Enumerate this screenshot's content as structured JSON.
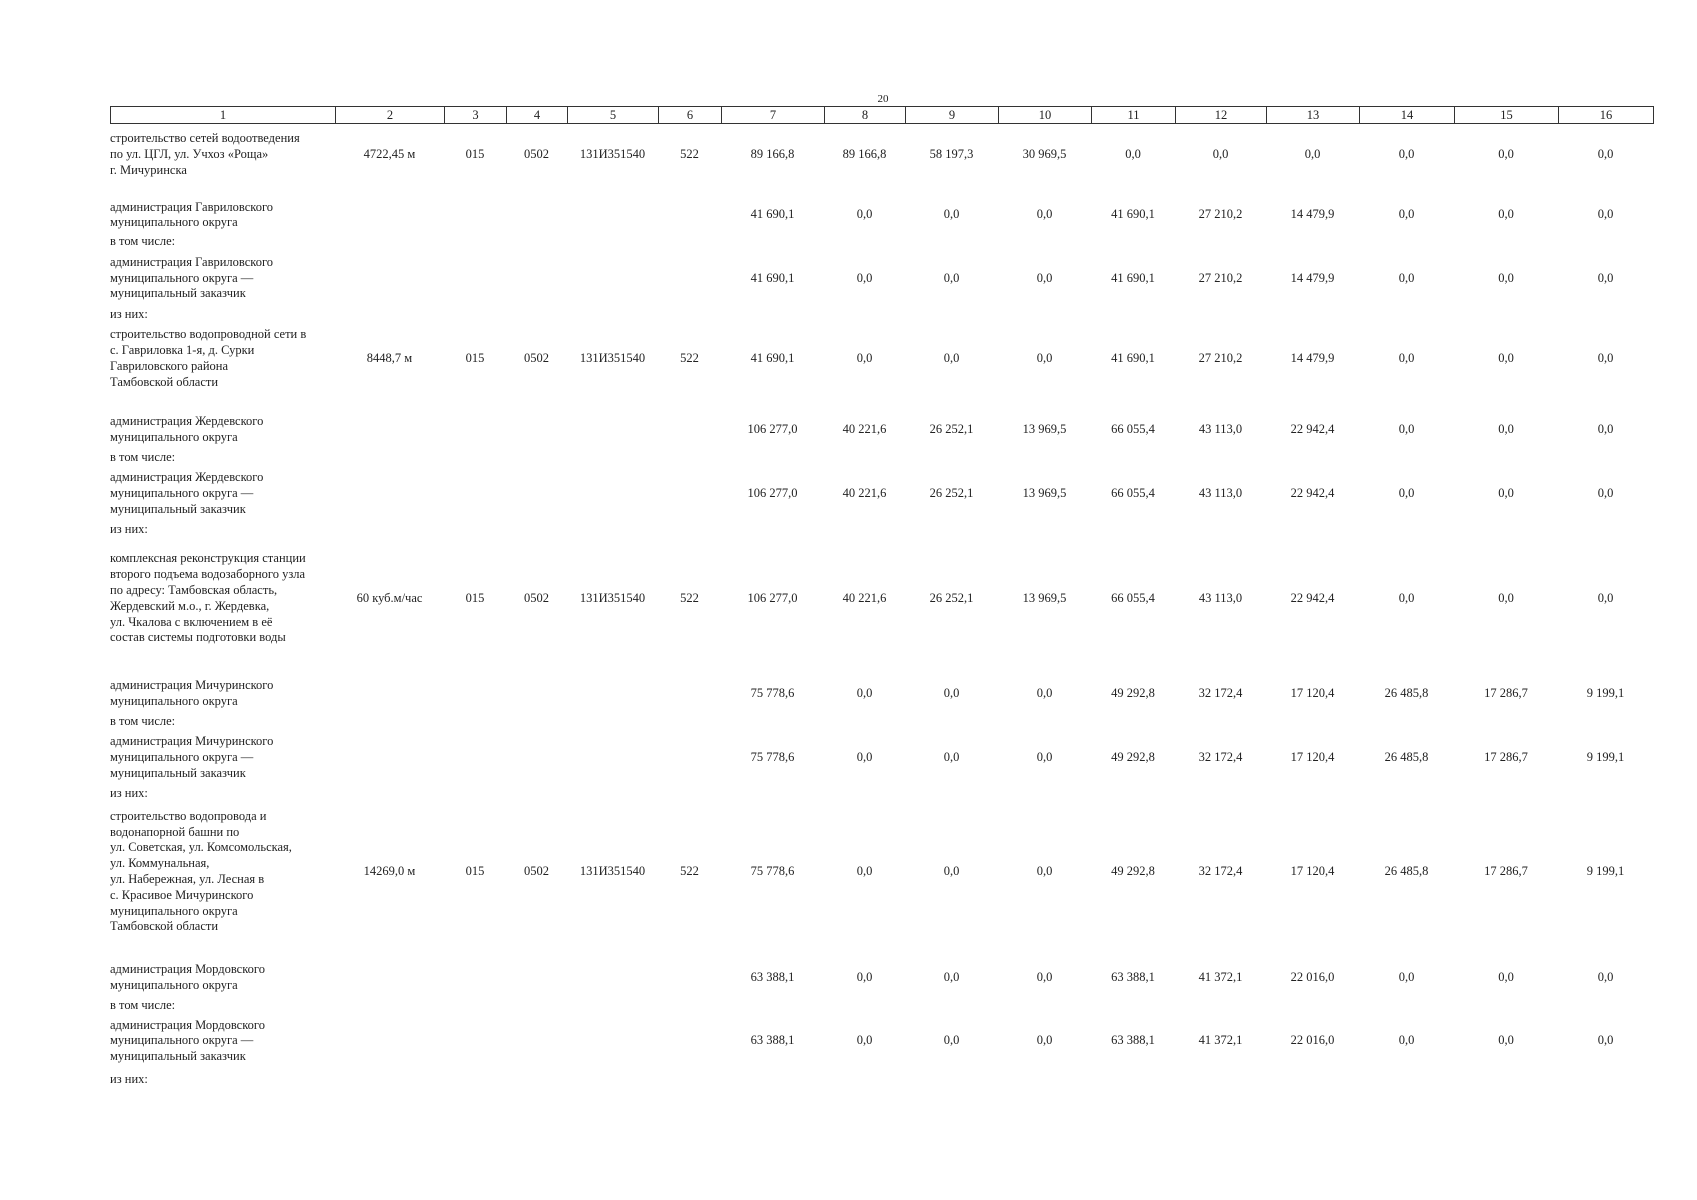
{
  "page_number": "20",
  "header": [
    "1",
    "2",
    "3",
    "4",
    "5",
    "6",
    "7",
    "8",
    "9",
    "10",
    "11",
    "12",
    "13",
    "14",
    "15",
    "16"
  ],
  "rows": [
    {
      "name": [
        "строительство сетей водоотведения",
        "по ул. ЦГЛ, ул. Учхоз «Роща»",
        "г. Мичуринска"
      ],
      "cells": [
        "4722,45 м",
        "015",
        "0502",
        "131И351540",
        "522",
        "89 166,8",
        "89 166,8",
        "58 197,3",
        "30 969,5",
        "0,0",
        "0,0",
        "0,0",
        "0,0",
        "0,0",
        "0,0"
      ]
    },
    {
      "name": [
        "администрация Гавриловского",
        "муниципального округа"
      ],
      "amounts": [
        "41 690,1",
        "0,0",
        "0,0",
        "0,0",
        "41 690,1",
        "27 210,2",
        "14 479,9",
        "0,0",
        "0,0",
        "0,0"
      ]
    },
    {
      "name": [
        "в том числе:"
      ]
    },
    {
      "name": [
        "администрация Гавриловского",
        "муниципального округа —",
        "муниципальный заказчик"
      ],
      "amounts": [
        "41 690,1",
        "0,0",
        "0,0",
        "0,0",
        "41 690,1",
        "27 210,2",
        "14 479,9",
        "0,0",
        "0,0",
        "0,0"
      ]
    },
    {
      "name": [
        "из них:"
      ]
    },
    {
      "name": [
        "строительство водопроводной сети в",
        "с. Гавриловка 1-я, д. Сурки",
        "Гавриловского района",
        "Тамбовской области"
      ],
      "cells": [
        "8448,7 м",
        "015",
        "0502",
        "131И351540",
        "522",
        "41 690,1",
        "0,0",
        "0,0",
        "0,0",
        "41 690,1",
        "27 210,2",
        "14 479,9",
        "0,0",
        "0,0",
        "0,0"
      ]
    },
    {
      "name": [
        "администрация Жердевского",
        "муниципального округа"
      ],
      "amounts": [
        "106 277,0",
        "40 221,6",
        "26 252,1",
        "13 969,5",
        "66 055,4",
        "43 113,0",
        "22 942,4",
        "0,0",
        "0,0",
        "0,0"
      ]
    },
    {
      "name": [
        "в том числе:"
      ]
    },
    {
      "name": [
        "администрация Жердевского",
        "муниципального округа —",
        "муниципальный заказчик"
      ],
      "amounts": [
        "106 277,0",
        "40 221,6",
        "26 252,1",
        "13 969,5",
        "66 055,4",
        "43 113,0",
        "22 942,4",
        "0,0",
        "0,0",
        "0,0"
      ]
    },
    {
      "name": [
        "из них:"
      ]
    },
    {
      "name": [
        "комплексная реконструкция станции",
        "второго подъема водозаборного узла",
        "по адресу: Тамбовская область,",
        "Жердевский м.о., г. Жердевка,",
        "ул. Чкалова с включением в её",
        "состав системы подготовки воды"
      ],
      "cells": [
        "60 куб.м/час",
        "015",
        "0502",
        "131И351540",
        "522",
        "106 277,0",
        "40 221,6",
        "26 252,1",
        "13 969,5",
        "66 055,4",
        "43 113,0",
        "22 942,4",
        "0,0",
        "0,0",
        "0,0"
      ]
    },
    {
      "name": [
        "администрация Мичуринского",
        "муниципального округа"
      ],
      "amounts": [
        "75 778,6",
        "0,0",
        "0,0",
        "0,0",
        "49 292,8",
        "32 172,4",
        "17 120,4",
        "26 485,8",
        "17 286,7",
        "9 199,1"
      ]
    },
    {
      "name": [
        "в том числе:"
      ]
    },
    {
      "name": [
        "администрация Мичуринского",
        "муниципального округа —",
        "муниципальный заказчик"
      ],
      "amounts": [
        "75 778,6",
        "0,0",
        "0,0",
        "0,0",
        "49 292,8",
        "32 172,4",
        "17 120,4",
        "26 485,8",
        "17 286,7",
        "9 199,1"
      ]
    },
    {
      "name": [
        "из них:"
      ]
    },
    {
      "name": [
        "строительство водопровода и",
        "водонапорной башни по",
        "ул. Советская, ул. Комсомольская,",
        "ул. Коммунальная,",
        "ул. Набережная, ул. Лесная в",
        "с. Красивое Мичуринского",
        "муниципального округа",
        "Тамбовской области"
      ],
      "cells": [
        "14269,0 м",
        "015",
        "0502",
        "131И351540",
        "522",
        "75 778,6",
        "0,0",
        "0,0",
        "0,0",
        "49 292,8",
        "32 172,4",
        "17 120,4",
        "26 485,8",
        "17 286,7",
        "9 199,1"
      ]
    },
    {
      "name": [
        "администрация Мордовского",
        "муниципального округа"
      ],
      "amounts": [
        "63 388,1",
        "0,0",
        "0,0",
        "0,0",
        "63 388,1",
        "41 372,1",
        "22 016,0",
        "0,0",
        "0,0",
        "0,0"
      ]
    },
    {
      "name": [
        "в том числе:"
      ]
    },
    {
      "name": [
        "администрация Мордовского",
        "муниципального округа —",
        "муниципальный заказчик"
      ],
      "amounts": [
        "63 388,1",
        "0,0",
        "0,0",
        "0,0",
        "63 388,1",
        "41 372,1",
        "22 016,0",
        "0,0",
        "0,0",
        "0,0"
      ]
    },
    {
      "name": [
        "из них:"
      ]
    }
  ]
}
